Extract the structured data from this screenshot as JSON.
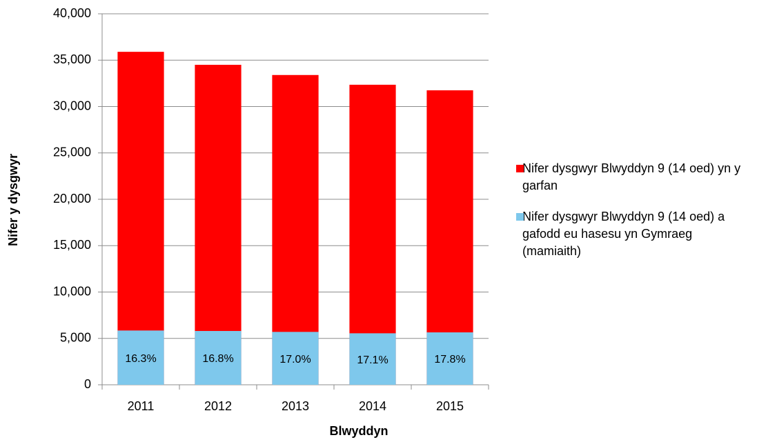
{
  "chart_data": {
    "type": "bar",
    "overlap": true,
    "x_label": "Blwyddyn",
    "y_label": "Nifer y dysgwyr",
    "categories": [
      "2011",
      "2012",
      "2013",
      "2014",
      "2015"
    ],
    "series": [
      {
        "name": "Nifer dysgwyr Blwyddyn 9 (14 oed) yn y garfan",
        "color": "#ff0000",
        "values": [
          35900,
          34500,
          33400,
          32350,
          31750
        ]
      },
      {
        "name": "Nifer dysgwyr Blwyddyn 9 (14 oed) a gafodd eu hasesu yn Gymraeg (mamiaith)",
        "color": "#7ec8ec",
        "values": [
          5850,
          5800,
          5700,
          5550,
          5650
        ],
        "data_labels": [
          "16.3%",
          "16.8%",
          "17.0%",
          "17.1%",
          "17.8%"
        ]
      }
    ],
    "ylim": [
      0,
      40000
    ],
    "yticks": [
      0,
      {
        "value": 5000,
        "label": "5,000"
      },
      {
        "value": 10000,
        "label": "10,000"
      },
      {
        "value": 15000,
        "label": "15,000"
      },
      {
        "value": 20000,
        "label": "20,000"
      },
      {
        "value": 25000,
        "label": "25,000"
      },
      {
        "value": 30000,
        "label": "30,000"
      },
      {
        "value": 35000,
        "label": "35,000"
      },
      {
        "value": 40000,
        "label": "40,000"
      }
    ],
    "grid": true,
    "legend": "right"
  }
}
